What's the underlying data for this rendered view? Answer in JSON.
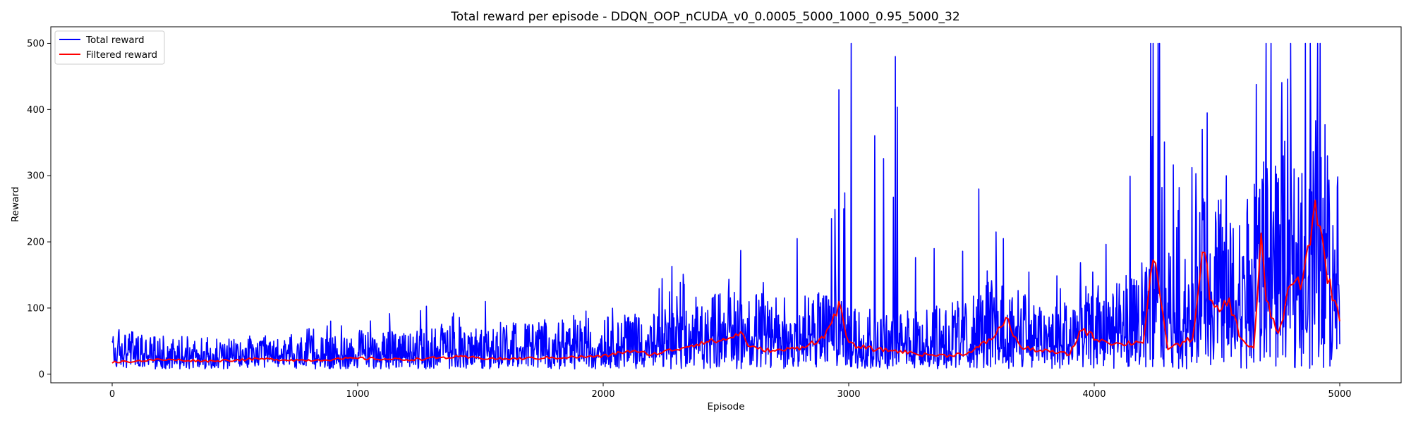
{
  "chart_data": {
    "type": "line",
    "title": "Total reward per episode - DDQN_OOP_nCUDA_v0_0.0005_5000_1000_0.95_5000_32",
    "xlabel": "Episode",
    "ylabel": "Reward",
    "xlim": [
      -250,
      5250
    ],
    "ylim": [
      -13,
      525
    ],
    "xticks": [
      0,
      1000,
      2000,
      3000,
      4000,
      5000
    ],
    "yticks": [
      0,
      100,
      200,
      300,
      400,
      500
    ],
    "grid": false,
    "legend_position": "top-left",
    "series": [
      {
        "name": "Total reward",
        "color": "#0000ff",
        "style": "noisy",
        "x_range": [
          0,
          5000
        ],
        "envelope": [
          [
            0,
            8,
            35,
            70
          ],
          [
            200,
            8,
            30,
            65
          ],
          [
            500,
            8,
            28,
            60
          ],
          [
            900,
            8,
            30,
            90
          ],
          [
            1300,
            8,
            35,
            120
          ],
          [
            1800,
            8,
            40,
            100
          ],
          [
            2200,
            8,
            45,
            160
          ],
          [
            2500,
            8,
            60,
            185
          ],
          [
            2800,
            8,
            55,
            210
          ],
          [
            2900,
            8,
            60,
            270
          ],
          [
            3000,
            8,
            55,
            500
          ],
          [
            3200,
            8,
            45,
            480
          ],
          [
            3500,
            8,
            55,
            280
          ],
          [
            3600,
            8,
            70,
            215
          ],
          [
            3800,
            8,
            50,
            190
          ],
          [
            4000,
            8,
            60,
            190
          ],
          [
            4200,
            8,
            70,
            500
          ],
          [
            4250,
            8,
            90,
            500
          ],
          [
            4400,
            8,
            80,
            360
          ],
          [
            4450,
            8,
            130,
            395
          ],
          [
            4600,
            8,
            110,
            330
          ],
          [
            4700,
            8,
            150,
            500
          ],
          [
            4800,
            8,
            140,
            500
          ],
          [
            4900,
            8,
            190,
            500
          ],
          [
            5000,
            8,
            150,
            240
          ]
        ],
        "spikes": [
          [
            1520,
            110
          ],
          [
            2280,
            163
          ],
          [
            2560,
            187
          ],
          [
            2790,
            205
          ],
          [
            2960,
            430
          ],
          [
            2980,
            250
          ],
          [
            3010,
            500
          ],
          [
            3190,
            480
          ],
          [
            3530,
            280
          ],
          [
            3600,
            215
          ],
          [
            3630,
            205
          ],
          [
            4230,
            500
          ],
          [
            4240,
            500
          ],
          [
            4260,
            500
          ],
          [
            4265,
            500
          ],
          [
            4440,
            370
          ],
          [
            4460,
            395
          ],
          [
            4660,
            438
          ],
          [
            4700,
            500
          ],
          [
            4720,
            500
          ],
          [
            4770,
            330
          ],
          [
            4800,
            500
          ],
          [
            4860,
            500
          ],
          [
            4880,
            500
          ],
          [
            4910,
            500
          ],
          [
            4920,
            500
          ],
          [
            4950,
            330
          ]
        ]
      },
      {
        "name": "Filtered reward",
        "color": "#ff0000",
        "x": [
          0,
          200,
          400,
          600,
          800,
          1000,
          1200,
          1400,
          1600,
          1800,
          2000,
          2100,
          2200,
          2300,
          2400,
          2500,
          2560,
          2600,
          2700,
          2800,
          2900,
          2960,
          3000,
          3100,
          3200,
          3300,
          3400,
          3500,
          3600,
          3640,
          3700,
          3800,
          3900,
          3950,
          4000,
          4100,
          4200,
          4240,
          4260,
          4300,
          4350,
          4400,
          4450,
          4470,
          4500,
          4550,
          4600,
          4650,
          4680,
          4700,
          4750,
          4800,
          4850,
          4900,
          4950,
          5000
        ],
        "y": [
          18,
          22,
          20,
          23,
          21,
          24,
          22,
          26,
          23,
          25,
          27,
          35,
          30,
          38,
          48,
          52,
          63,
          40,
          35,
          40,
          55,
          105,
          45,
          38,
          35,
          30,
          28,
          33,
          60,
          85,
          40,
          35,
          30,
          70,
          55,
          45,
          50,
          180,
          130,
          40,
          45,
          55,
          200,
          110,
          95,
          110,
          50,
          40,
          205,
          110,
          60,
          135,
          140,
          260,
          150,
          80
        ]
      }
    ]
  }
}
